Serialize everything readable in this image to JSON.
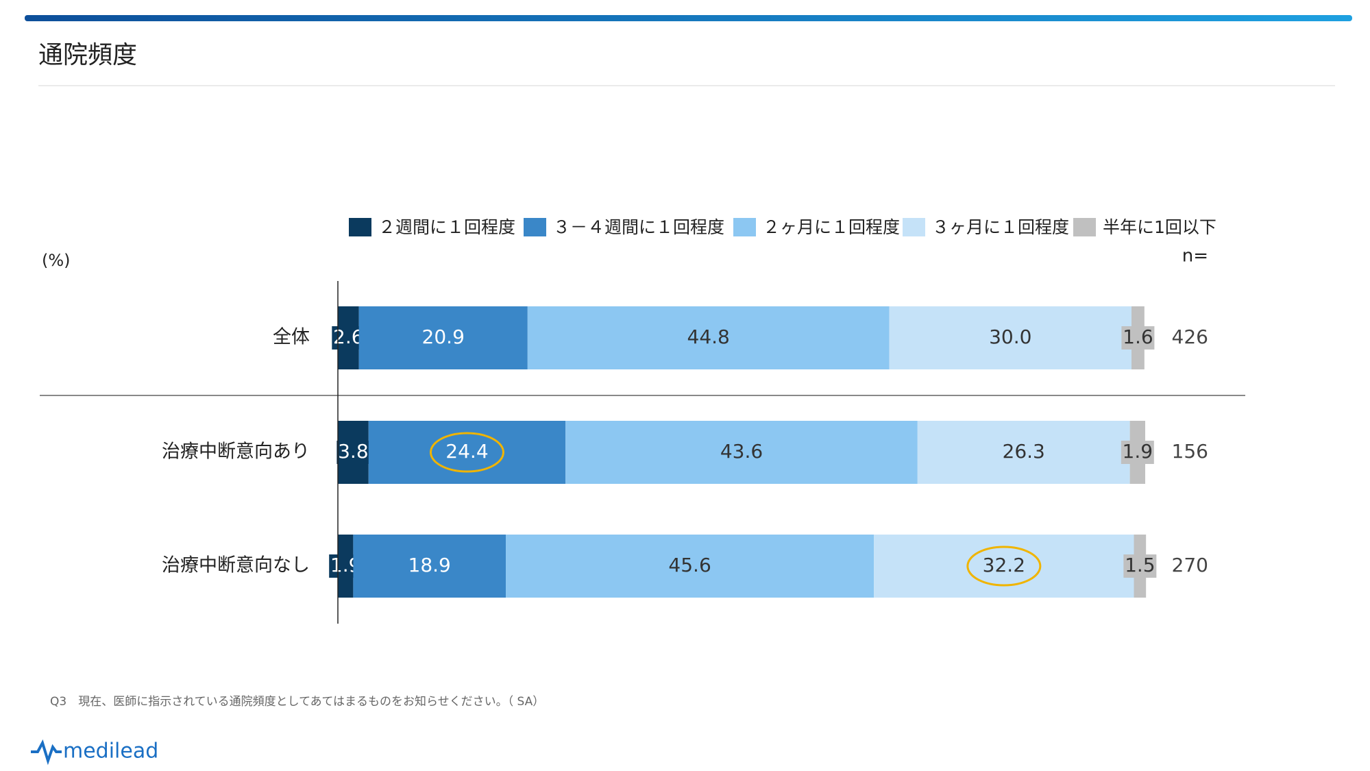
{
  "header": {
    "title": "通院頻度"
  },
  "chart_data": {
    "type": "stacked-bar-horizontal",
    "unit_label": "(%)",
    "n_label": "n=",
    "categories": [
      "全体",
      "治療中断意向あり",
      "治療中断意向なし"
    ],
    "n": [
      426,
      156,
      270
    ],
    "xlim": [
      0,
      100
    ],
    "series": [
      {
        "name": "２週間に１回程度",
        "color": "#0b3a5e",
        "values": [
          2.6,
          3.8,
          1.9
        ]
      },
      {
        "name": "３－４週間に１回程度",
        "color": "#3a87c8",
        "values": [
          20.9,
          24.4,
          18.9
        ]
      },
      {
        "name": "２ヶ月に１回程度",
        "color": "#8cc7f2",
        "values": [
          44.8,
          43.6,
          45.6
        ]
      },
      {
        "name": "３ヶ月に１回程度",
        "color": "#c5e2f8",
        "values": [
          30.0,
          26.3,
          32.2
        ],
        "value_labels": [
          "30.0",
          "26.3",
          "32.2"
        ]
      },
      {
        "name": "半年に1回以下",
        "color": "#c0c0c0",
        "values": [
          1.6,
          1.9,
          1.5
        ]
      }
    ]
  },
  "footnote": "Q3　現在、医師に指示されている通院頻度としてあてはまるものをお知らせください。（ SA）",
  "logo": "medilead"
}
